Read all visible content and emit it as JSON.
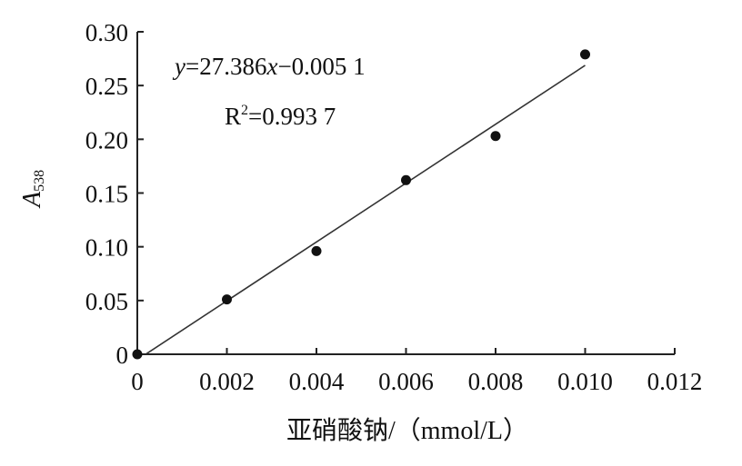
{
  "chart_data": {
    "type": "scatter",
    "title": "",
    "xlabel": "亚硝酸钠/（mmol/L）",
    "ylabel_main": "A",
    "ylabel_sub": "538",
    "xlim": [
      0,
      0.012
    ],
    "ylim": [
      0,
      0.3
    ],
    "x_ticks": [
      0,
      0.002,
      0.004,
      0.006,
      0.008,
      0.01,
      0.012
    ],
    "x_tick_labels": [
      "0",
      "0.002",
      "0.004",
      "0.006",
      "0.008",
      "0.010",
      "0.012"
    ],
    "y_ticks": [
      0,
      0.05,
      0.1,
      0.15,
      0.2,
      0.25,
      0.3
    ],
    "y_tick_labels": [
      "0",
      "0.05",
      "0.10",
      "0.15",
      "0.20",
      "0.25",
      "0.30"
    ],
    "grid": false,
    "points": [
      {
        "x": 0,
        "y": 0
      },
      {
        "x": 0.002,
        "y": 0.051
      },
      {
        "x": 0.004,
        "y": 0.096
      },
      {
        "x": 0.006,
        "y": 0.162
      },
      {
        "x": 0.008,
        "y": 0.203
      },
      {
        "x": 0.01,
        "y": 0.279
      }
    ],
    "fit_line": {
      "slope": 27.386,
      "intercept": -0.0051,
      "x_range": [
        0.0002,
        0.01
      ]
    },
    "equation": {
      "y_var": "y",
      "middle": "=27.386",
      "x_var": "x",
      "tail": "−0.005 1"
    },
    "r_squared": {
      "R": "R",
      "exp": "2",
      "value": "=0.993 7"
    },
    "colors": {
      "points": "#111111",
      "line": "#333333",
      "axis": "#222222"
    }
  }
}
